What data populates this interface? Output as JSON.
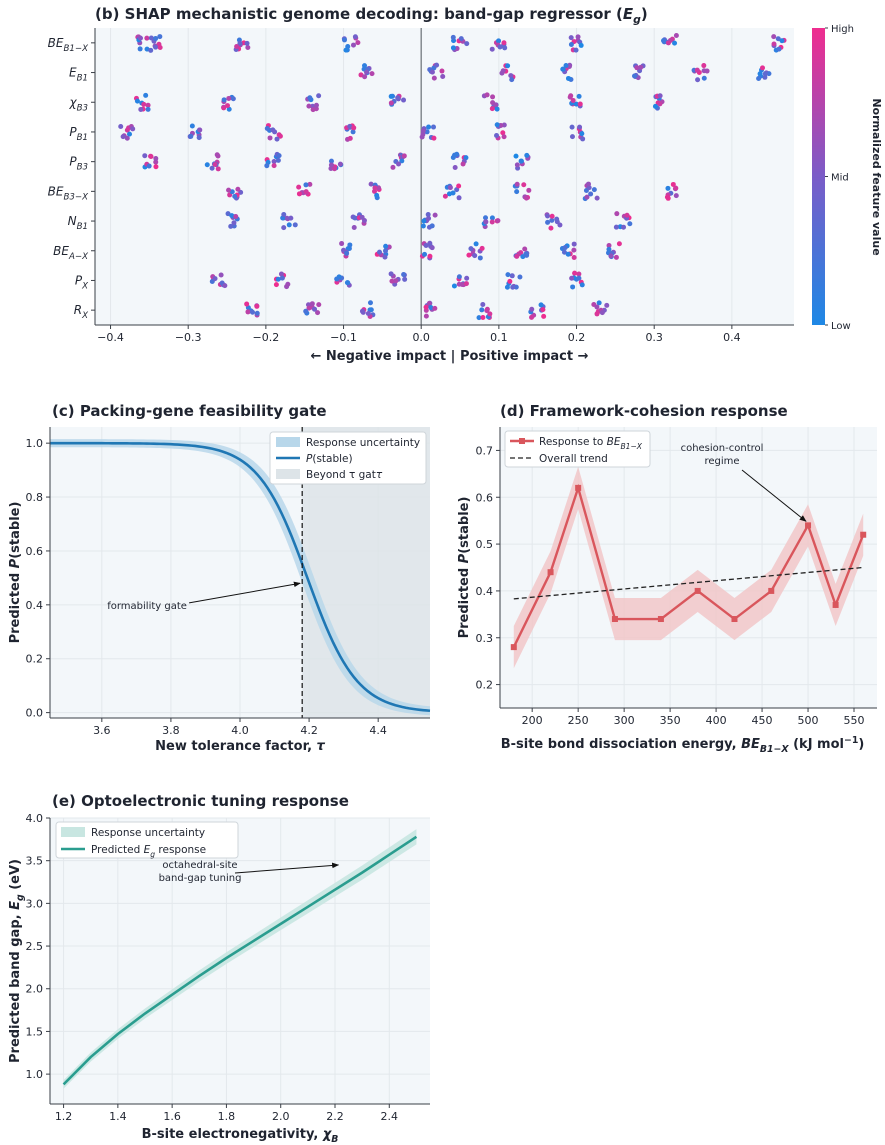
{
  "colors": {
    "panel_bg": "#f3f7fa",
    "grid": "#e3e8ec",
    "axis": "#3a3f47",
    "low": "#1e88e5",
    "mid": "#7b5cc8",
    "high": "#ef2d8f",
    "blue_line": "#1f77b4",
    "blue_band": "#b8d7ea",
    "gate_shade": "#dde4e8",
    "red_line": "#d9565c",
    "red_band": "#f1c7c8",
    "teal_line": "#2a9d8f",
    "teal_band": "#c8e6e1"
  },
  "chart_data": [
    {
      "id": "b",
      "type": "scatter",
      "title": "(b) SHAP mechanistic genome decoding: band-gap regressor (",
      "title_var": "E",
      "title_sub": "g",
      "title_end": ")",
      "xlabel": "← Negative impact  |  Positive impact →",
      "xlim": [
        -0.42,
        0.48
      ],
      "xticks": [
        -0.4,
        -0.3,
        -0.2,
        -0.1,
        0.0,
        0.1,
        0.2,
        0.3,
        0.4
      ],
      "xtick_labels": [
        "−0.4",
        "−0.3",
        "−0.2",
        "−0.1",
        "0.0",
        "0.1",
        "0.2",
        "0.3",
        "0.4"
      ],
      "features": [
        {
          "label": "BE",
          "sub": "B1−X",
          "clusters": [
            -0.36,
            -0.34,
            -0.23,
            -0.09,
            0.05,
            0.1,
            0.2,
            0.32,
            0.46
          ]
        },
        {
          "label": "E",
          "sub": "B1",
          "clusters": [
            -0.07,
            0.02,
            0.11,
            0.19,
            0.28,
            0.36,
            0.44
          ]
        },
        {
          "label": "χ",
          "sub": "B3",
          "clusters": [
            -0.36,
            -0.25,
            -0.14,
            -0.03,
            0.09,
            0.2,
            0.31
          ]
        },
        {
          "label": "P",
          "sub": "B1",
          "clusters": [
            -0.38,
            -0.29,
            -0.19,
            -0.09,
            0.01,
            0.1,
            0.2
          ]
        },
        {
          "label": "P",
          "sub": "B3",
          "clusters": [
            -0.35,
            -0.27,
            -0.19,
            -0.11,
            -0.03,
            0.05,
            0.13
          ]
        },
        {
          "label": "BE",
          "sub": "B3−X",
          "clusters": [
            -0.24,
            -0.15,
            -0.06,
            0.04,
            0.13,
            0.22,
            0.32
          ]
        },
        {
          "label": "N",
          "sub": "B1",
          "clusters": [
            -0.24,
            -0.17,
            -0.08,
            0.01,
            0.09,
            0.17,
            0.26
          ]
        },
        {
          "label": "BE",
          "sub": "A−X",
          "clusters": [
            -0.1,
            -0.05,
            0.01,
            0.07,
            0.13,
            0.19,
            0.25
          ]
        },
        {
          "label": "P",
          "sub": "X",
          "clusters": [
            -0.26,
            -0.18,
            -0.1,
            -0.03,
            0.05,
            0.12,
            0.2
          ]
        },
        {
          "label": "R",
          "sub": "X",
          "clusters": [
            -0.22,
            -0.14,
            -0.07,
            0.01,
            0.08,
            0.15,
            0.23
          ]
        }
      ],
      "colorbar": {
        "label": "Normalized feature value",
        "ticks": [
          "High",
          "Mid",
          "Low"
        ]
      }
    },
    {
      "id": "c",
      "type": "line",
      "title": "(c) Packing-gene feasibility gate",
      "xlabel": "New tolerance factor, ",
      "xlabel_var": "τ",
      "ylabel": "Predicted ",
      "ylabel_var": "P",
      "ylabel_end": "(stable)",
      "xlim": [
        3.45,
        4.55
      ],
      "ylim": [
        -0.02,
        1.06
      ],
      "xticks": [
        3.6,
        3.8,
        4.0,
        4.2,
        4.4
      ],
      "xtick_labels": [
        "3.6",
        "3.8",
        "4.0",
        "4.2",
        "4.4"
      ],
      "yticks": [
        0.0,
        0.2,
        0.4,
        0.6,
        0.8,
        1.0
      ],
      "ytick_labels": [
        "0.0",
        "0.2",
        "0.4",
        "0.6",
        "0.8",
        "1.0"
      ],
      "logistic": {
        "x0": 4.195,
        "k": 14.0
      },
      "gate_x": 4.18,
      "legend": [
        "Response uncertainty",
        "P(stable)",
        "Beyond τ gate"
      ],
      "legend_var": [
        "",
        "P",
        "τ"
      ],
      "annotation": {
        "text": "formability gate",
        "x": 3.76,
        "y": 0.4,
        "arrow_to": [
          4.18,
          0.48
        ]
      }
    },
    {
      "id": "d",
      "type": "line",
      "title": "(d) Framework-cohesion response",
      "xlabel": "B-site bond dissociation energy, ",
      "xlabel_var": "BE",
      "xlabel_sub": "B1−X",
      "xlabel_end": " (kJ mol",
      "xlabel_sup": "−1",
      "xlabel_close": ")",
      "ylabel": "Predicted ",
      "ylabel_var": "P",
      "ylabel_end": "(stable)",
      "xlim": [
        165,
        575
      ],
      "ylim": [
        0.15,
        0.75
      ],
      "xticks": [
        200,
        250,
        300,
        350,
        400,
        450,
        500,
        550
      ],
      "xtick_labels": [
        "200",
        "250",
        "300",
        "350",
        "400",
        "450",
        "500",
        "550"
      ],
      "yticks": [
        0.2,
        0.3,
        0.4,
        0.5,
        0.6,
        0.7
      ],
      "ytick_labels": [
        "0.2",
        "0.3",
        "0.4",
        "0.5",
        "0.6",
        "0.7"
      ],
      "x": [
        180,
        220,
        250,
        290,
        340,
        380,
        420,
        460,
        500,
        530,
        560
      ],
      "y": [
        0.28,
        0.44,
        0.62,
        0.34,
        0.34,
        0.4,
        0.34,
        0.4,
        0.54,
        0.37,
        0.52
      ],
      "trend": {
        "x": [
          180,
          560
        ],
        "y": [
          0.383,
          0.45
        ]
      },
      "legend": [
        "Response to ",
        "Overall trend"
      ],
      "legend_var": "BE",
      "legend_sub": "B1−X",
      "annotation": {
        "line1": "cohesion-control",
        "line2": "regime",
        "arrow_to": [
          500,
          0.54
        ]
      }
    },
    {
      "id": "e",
      "type": "line",
      "title": "(e) Optoelectronic tuning response",
      "xlabel": "B-site electronegativity, ",
      "xlabel_var": "χ",
      "xlabel_sub": "B",
      "ylabel": "Predicted band gap, ",
      "ylabel_var": "E",
      "ylabel_sub": "g",
      "ylabel_end": " (eV)",
      "xlim": [
        1.15,
        2.55
      ],
      "ylim": [
        0.65,
        4.0
      ],
      "xticks": [
        1.2,
        1.4,
        1.6,
        1.8,
        2.0,
        2.2,
        2.4
      ],
      "xtick_labels": [
        "1.2",
        "1.4",
        "1.6",
        "1.8",
        "2.0",
        "2.2",
        "2.4"
      ],
      "yticks": [
        1.0,
        1.5,
        2.0,
        2.5,
        3.0,
        3.5,
        4.0
      ],
      "ytick_labels": [
        "1.0",
        "1.5",
        "2.0",
        "2.5",
        "3.0",
        "3.5",
        "4.0"
      ],
      "x": [
        1.2,
        1.3,
        1.4,
        1.5,
        1.6,
        1.7,
        1.8,
        1.9,
        2.0,
        2.1,
        2.2,
        2.3,
        2.4,
        2.5
      ],
      "y": [
        0.88,
        1.2,
        1.47,
        1.71,
        1.93,
        2.15,
        2.36,
        2.56,
        2.76,
        2.96,
        3.16,
        3.36,
        3.57,
        3.78
      ],
      "legend": [
        "Response uncertainty",
        "Predicted ",
        " response"
      ],
      "legend_var": "E",
      "legend_sub": "g",
      "annotation": {
        "line1": "octahedral-site",
        "line2": "band-gap tuning",
        "arrow_to": [
          2.22,
          3.45
        ]
      }
    }
  ]
}
